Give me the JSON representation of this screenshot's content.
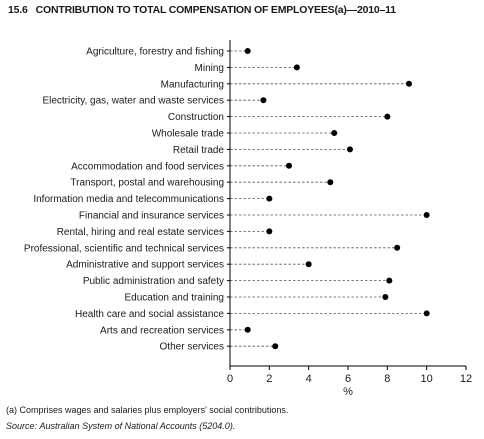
{
  "header": {
    "number": "15.6",
    "title": "CONTRIBUTION TO TOTAL COMPENSATION OF EMPLOYEES(a)—2010–11"
  },
  "chart_data": {
    "type": "dot",
    "orientation": "horizontal",
    "categories": [
      "Agriculture, forestry and fishing",
      "Mining",
      "Manufacturing",
      "Electricity, gas, water and waste services",
      "Construction",
      "Wholesale trade",
      "Retail trade",
      "Accommodation and food services",
      "Transport, postal and warehousing",
      "Information media and telecommunications",
      "Financial and insurance services",
      "Rental, hiring and real estate services",
      "Professional, scientific and technical services",
      "Administrative and support services",
      "Public administration and safety",
      "Education and training",
      "Health care and social assistance",
      "Arts and recreation services",
      "Other services"
    ],
    "values": [
      0.9,
      3.4,
      9.1,
      1.7,
      8.0,
      5.3,
      6.1,
      3.0,
      5.1,
      2.0,
      10.0,
      2.0,
      8.5,
      4.0,
      8.1,
      7.9,
      10.0,
      0.9,
      2.3
    ],
    "xticks": [
      "0",
      "2",
      "4",
      "6",
      "8",
      "10",
      "12"
    ],
    "xlim": [
      0,
      12
    ],
    "xlabel": "%",
    "marker_color": "#000000",
    "leader_line_color": "#555555"
  },
  "footnotes": {
    "note_a": "(a) Comprises wages and salaries plus employers' social contributions.",
    "source_label": "Source:",
    "source_text": "Australian System of National Accounts (5204.0)."
  }
}
